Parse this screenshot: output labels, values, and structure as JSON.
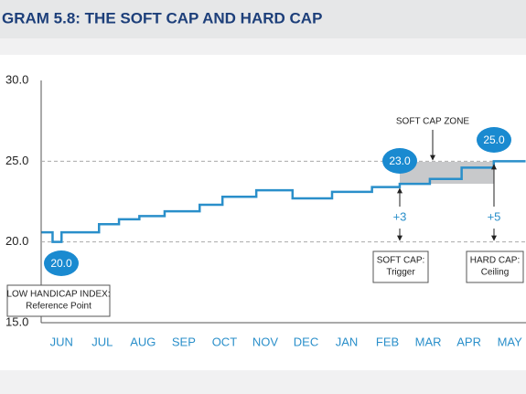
{
  "chart_data": {
    "type": "step-line",
    "title": "GRAM 5.8: THE SOFT CAP AND HARD CAP",
    "xlim": [
      -0.5,
      11.4
    ],
    "xticks": [
      {
        "value": 0,
        "label": "JUN"
      },
      {
        "value": 1,
        "label": "JUL"
      },
      {
        "value": 2,
        "label": "AUG"
      },
      {
        "value": 3,
        "label": "SEP"
      },
      {
        "value": 4,
        "label": "OCT"
      },
      {
        "value": 5,
        "label": "NOV"
      },
      {
        "value": 6,
        "label": "DEC"
      },
      {
        "value": 7,
        "label": "JAN"
      },
      {
        "value": 8,
        "label": "FEB"
      },
      {
        "value": 9,
        "label": "MAR"
      },
      {
        "value": 10,
        "label": "APR"
      },
      {
        "value": 11,
        "label": "MAY"
      }
    ],
    "ylim": [
      15,
      30
    ],
    "yticks": [
      {
        "value": 15,
        "label": "15.0"
      },
      {
        "value": 20,
        "label": "20.0"
      },
      {
        "value": 25,
        "label": "25.0"
      },
      {
        "value": 30,
        "label": "30.0"
      }
    ],
    "grid": true,
    "series": [
      {
        "color": "#2a8fca",
        "x": [
          -0.49,
          -0.22,
          0,
          0.92,
          1.41,
          1.91,
          2.53,
          3.39,
          3.95,
          4.78,
          5.67,
          6.64,
          7.62,
          8.3,
          9.04,
          9.82,
          10.61,
          11.39
        ],
        "values": [
          20.6,
          20.0,
          20.6,
          21.1,
          21.4,
          21.6,
          21.9,
          22.3,
          22.8,
          23.2,
          22.7,
          23.1,
          23.4,
          23.6,
          23.9,
          24.6,
          25.0,
          25.0
        ]
      }
    ],
    "annotations": {
      "bubbles": [
        "20.0",
        "23.0",
        "25.0"
      ],
      "zone": "SOFT CAP ZONE",
      "soft_delta": "+3",
      "hard_delta": "+5",
      "soft_box": [
        "SOFT CAP:",
        "Trigger"
      ],
      "hard_box": [
        "HARD CAP:",
        "Ceiling"
      ],
      "low_box": [
        "LOW HANDICAP INDEX:",
        "Reference Point"
      ]
    }
  }
}
